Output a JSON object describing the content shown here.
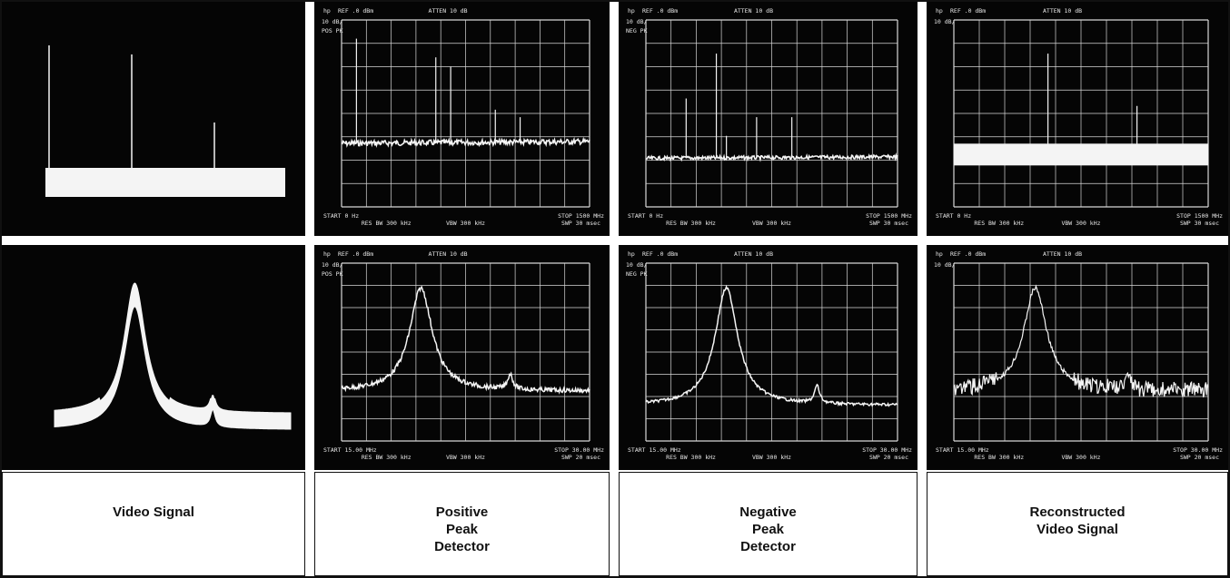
{
  "figure": {
    "columns": [
      {
        "id": "video",
        "caption_lines": [
          "Video Signal"
        ]
      },
      {
        "id": "pos",
        "caption_lines": [
          "Positive",
          "Peak",
          "Detector"
        ]
      },
      {
        "id": "neg",
        "caption_lines": [
          "Negative",
          "Peak",
          "Detector"
        ]
      },
      {
        "id": "recon",
        "caption_lines": [
          "Reconstructed",
          "Video Signal"
        ]
      }
    ],
    "display_text": {
      "brand": "hp",
      "ref": "REF .0 dBm",
      "atten": "ATTEN 10 dB",
      "scale": "10 dB/",
      "pos_mode": "POS PK",
      "neg_mode": "NEG PK",
      "top_start": "START 0 Hz",
      "top_stop": "STOP 1500 MHz",
      "top_res": "RES BW 300 kHz",
      "top_vbw": "VBW 300 kHz",
      "top_swp": "SWP 30 msec",
      "bot_start": "START 15.00 MHz",
      "bot_stop": "STOP 30.00 MHz",
      "bot_res": "RES BW 300 kHz",
      "bot_vbw": "VBW 300 kHz",
      "bot_swp": "SWP 20 msec"
    },
    "colors": {
      "screen": "#050505",
      "trace": "#f4f4f4",
      "grid": "#d8d8d8",
      "caption_bg": "#ffffff"
    }
  }
}
